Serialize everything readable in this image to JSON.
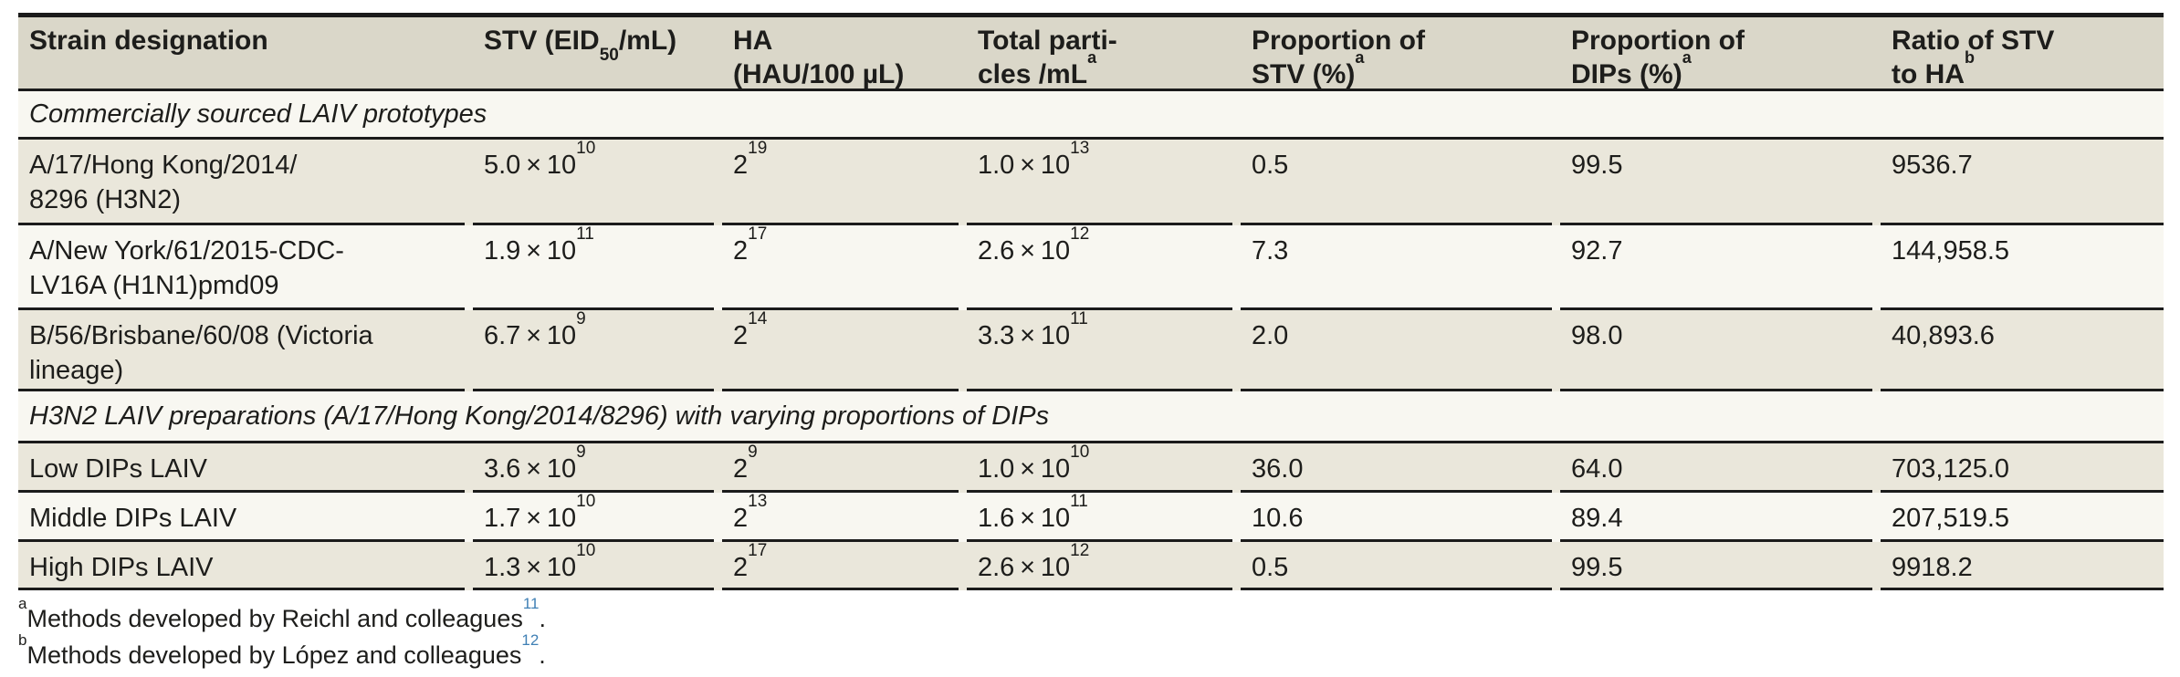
{
  "colors": {
    "header_bg": "#dad7c9",
    "row_beige": "#eae7db",
    "row_light": "#f8f7f1",
    "border": "#1b1b1b",
    "text": "#1d1d1b",
    "citation_blue": "#4080b5"
  },
  "header": {
    "strain": "Strain designation",
    "stv_pre": "STV (EID",
    "stv_sub": "50",
    "stv_post": "/mL)",
    "ha_line1": "HA",
    "ha_line2": "(HAU/100 µL)",
    "tp_line1": "Total parti-",
    "tp_line2": "cles /mL",
    "tp_sup": "a",
    "pstv_line1": "Proportion of",
    "pstv_line2": "STV (%)",
    "pstv_sup": "a",
    "pdip_line1": "Proportion of",
    "pdip_line2": "DIPs (%)",
    "pdip_sup": "a",
    "ratio_line1": "Ratio of STV",
    "ratio_line2": "to HA",
    "ratio_sup": "b"
  },
  "sections": [
    {
      "title": "Commercially sourced LAIV prototypes",
      "rows": [
        {
          "strain1": "A/17/Hong Kong/2014/",
          "strain2": "8296 (H3N2)",
          "stv_base": "5.0 × 10",
          "stv_exp": "10",
          "ha_base": "2",
          "ha_exp": "19",
          "tp_base": "1.0 × 10",
          "tp_exp": "13",
          "prop_stv": "0.5",
          "prop_dips": "99.5",
          "ratio": "9536.7"
        },
        {
          "strain1": "A/New York/61/2015-CDC-",
          "strain2": "LV16A (H1N1)pmd09",
          "stv_base": "1.9 × 10",
          "stv_exp": "11",
          "ha_base": "2",
          "ha_exp": "17",
          "tp_base": "2.6 × 10",
          "tp_exp": "12",
          "prop_stv": "7.3",
          "prop_dips": "92.7",
          "ratio": "144,958.5"
        },
        {
          "strain1": "B/56/Brisbane/60/08 (Victoria",
          "strain2": "lineage)",
          "stv_base": "6.7 × 10",
          "stv_exp": "9",
          "ha_base": "2",
          "ha_exp": "14",
          "tp_base": "3.3 × 10",
          "tp_exp": "11",
          "prop_stv": "2.0",
          "prop_dips": "98.0",
          "ratio": "40,893.6"
        }
      ]
    },
    {
      "title": "H3N2 LAIV preparations (A/17/Hong Kong/2014/8296) with varying proportions of DIPs",
      "rows": [
        {
          "strain1": "Low DIPs LAIV",
          "stv_base": "3.6 × 10",
          "stv_exp": "9",
          "ha_base": "2",
          "ha_exp": "9",
          "tp_base": "1.0 × 10",
          "tp_exp": "10",
          "prop_stv": "36.0",
          "prop_dips": "64.0",
          "ratio": "703,125.0"
        },
        {
          "strain1": "Middle DIPs LAIV",
          "stv_base": "1.7 × 10",
          "stv_exp": "10",
          "ha_base": "2",
          "ha_exp": "13",
          "tp_base": "1.6 × 10",
          "tp_exp": "11",
          "prop_stv": "10.6",
          "prop_dips": "89.4",
          "ratio": "207,519.5"
        },
        {
          "strain1": "High DIPs LAIV",
          "stv_base": "1.3 × 10",
          "stv_exp": "10",
          "ha_base": "2",
          "ha_exp": "17",
          "tp_base": "2.6 × 10",
          "tp_exp": "12",
          "prop_stv": "0.5",
          "prop_dips": "99.5",
          "ratio": "9918.2"
        }
      ]
    }
  ],
  "footnotes": [
    {
      "marker": "a",
      "text": "Methods developed by Reichl and colleagues",
      "ref": "11",
      "period": "."
    },
    {
      "marker": "b",
      "text": "Methods developed by López and colleagues",
      "ref": "12",
      "period": "."
    }
  ]
}
